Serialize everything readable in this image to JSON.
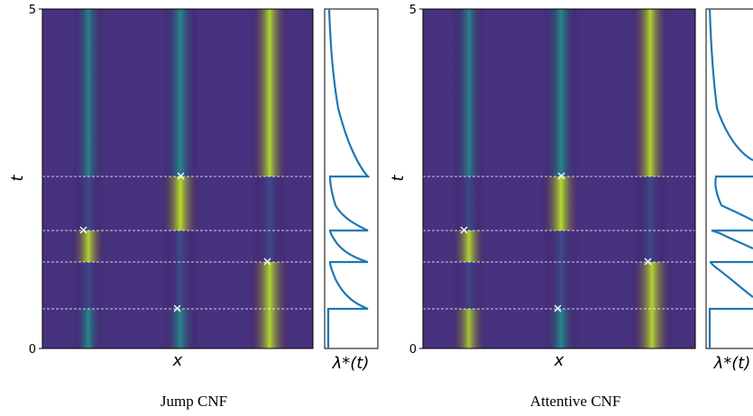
{
  "figure": {
    "captions": [
      "Jump CNF",
      "Attentive CNF"
    ]
  },
  "chart_data": [
    {
      "type": "heatmap",
      "title": "Jump CNF",
      "xlabel": "x",
      "ylabel": "t",
      "ylim": [
        0,
        5
      ],
      "yticks": [
        "0",
        "5"
      ],
      "colormap": "viridis",
      "event_times": [
        0.58,
        1.27,
        1.73,
        2.55
      ],
      "events": [
        {
          "t": 0.58,
          "x": 0.51
        },
        {
          "t": 1.27,
          "x": 0.83
        },
        {
          "t": 1.73,
          "x": 0.16
        },
        {
          "t": 2.55,
          "x": 0.51
        }
      ],
      "intensity_panel": {
        "label": "λ*(t)",
        "xlabel_latex": "$\\lambda^*(t)$"
      }
    },
    {
      "type": "heatmap",
      "title": "Attentive CNF",
      "xlabel": "x",
      "ylabel": "t",
      "ylim": [
        0,
        5
      ],
      "yticks": [
        "0",
        "5"
      ],
      "colormap": "viridis",
      "event_times": [
        0.58,
        1.27,
        1.73,
        2.55
      ],
      "events": [
        {
          "t": 0.58,
          "x": 0.51
        },
        {
          "t": 1.27,
          "x": 0.83
        },
        {
          "t": 1.73,
          "x": 0.16
        },
        {
          "t": 2.55,
          "x": 0.51
        }
      ],
      "intensity_panel": {
        "label": "λ*(t)",
        "xlabel_latex": "$\\lambda^*(t)$"
      }
    }
  ]
}
